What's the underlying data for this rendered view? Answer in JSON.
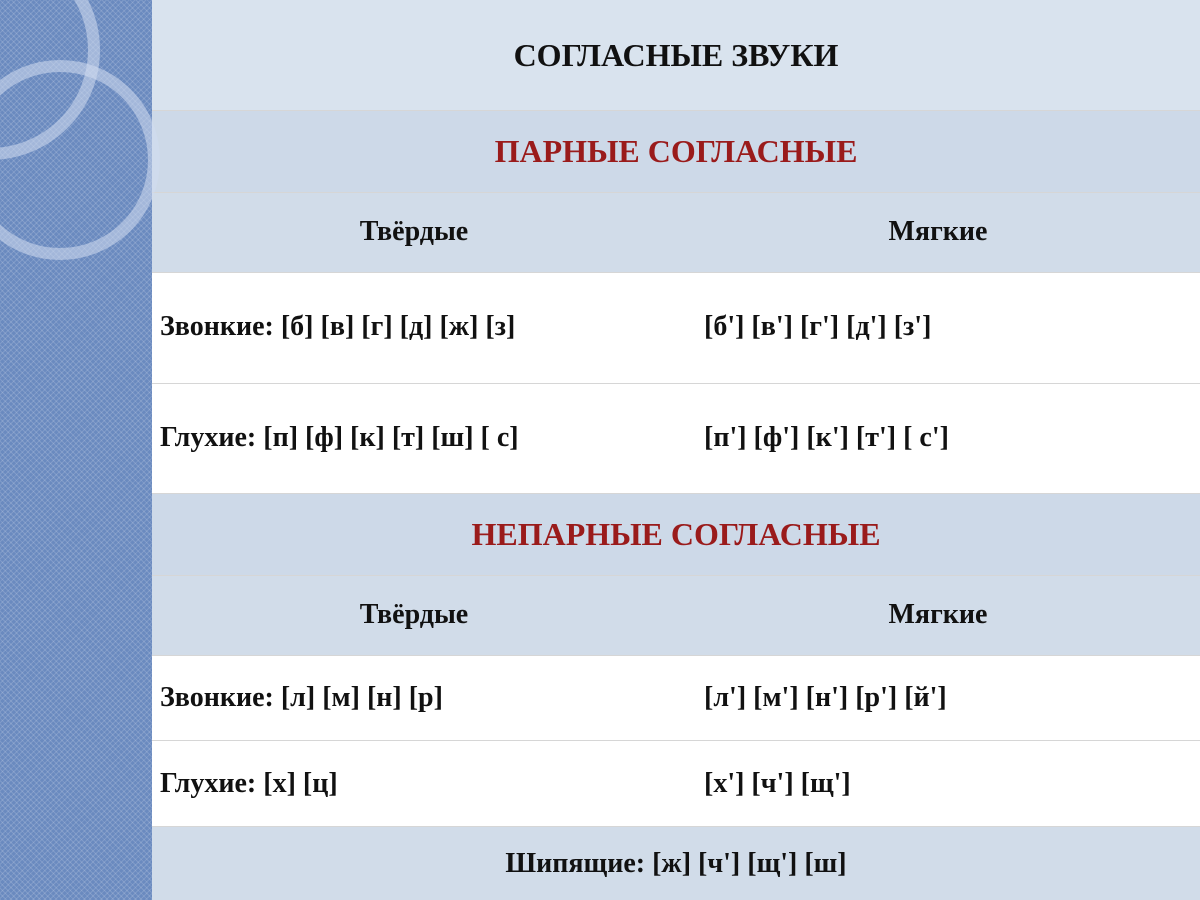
{
  "colors": {
    "sidebar_bg": "#6a8abf",
    "ring": "rgba(210,220,240,0.55)",
    "title_bg": "#d9e3ee",
    "section_bg": "#cdd9e8",
    "head_bg": "#d1dce9",
    "data_bg": "#ffffff",
    "border": "#d6d6d6",
    "section_text": "#9a1b1b",
    "text": "#111111"
  },
  "typography": {
    "title_fontsize": 32,
    "section_fontsize": 32,
    "head_fontsize": 28,
    "data_fontsize": 28,
    "font_family": "Times New Roman",
    "font_weight": "bold"
  },
  "table": {
    "main_title": "СОГЛАСНЫЕ ЗВУКИ",
    "section_paired": "ПАРНЫЕ СОГЛАСНЫЕ",
    "section_unpaired": "НЕПАРНЫЕ СОГЛАСНЫЕ",
    "col_hard": "Твёрдые",
    "col_soft": "Мягкие",
    "paired": {
      "voiced_hard": "Звонкие: [б]   [в]    [г]   [д]   [ж]    [з]",
      "voiced_soft": "[б']   [в']    [г']   [д']    [з']",
      "voiceless_hard": "Глухие:    [п]   [ф]   [к]   [т]   [ш]   [ с]",
      "voiceless_soft": "[п']   [ф']   [к']   [т']    [ с']"
    },
    "unpaired": {
      "voiced_hard": "Звонкие: [л] [м] [н] [р]",
      "voiced_soft": "[л'] [м'] [н'] [р'] [й']",
      "voiceless_hard": "Глухие:   [х] [ц]",
      "voiceless_soft": "[х'] [ч'] [щ']"
    },
    "sibilants_label": "Шипящие:",
    "sibilants_values": "[ж] [ч'] [щ'] [ш]"
  }
}
